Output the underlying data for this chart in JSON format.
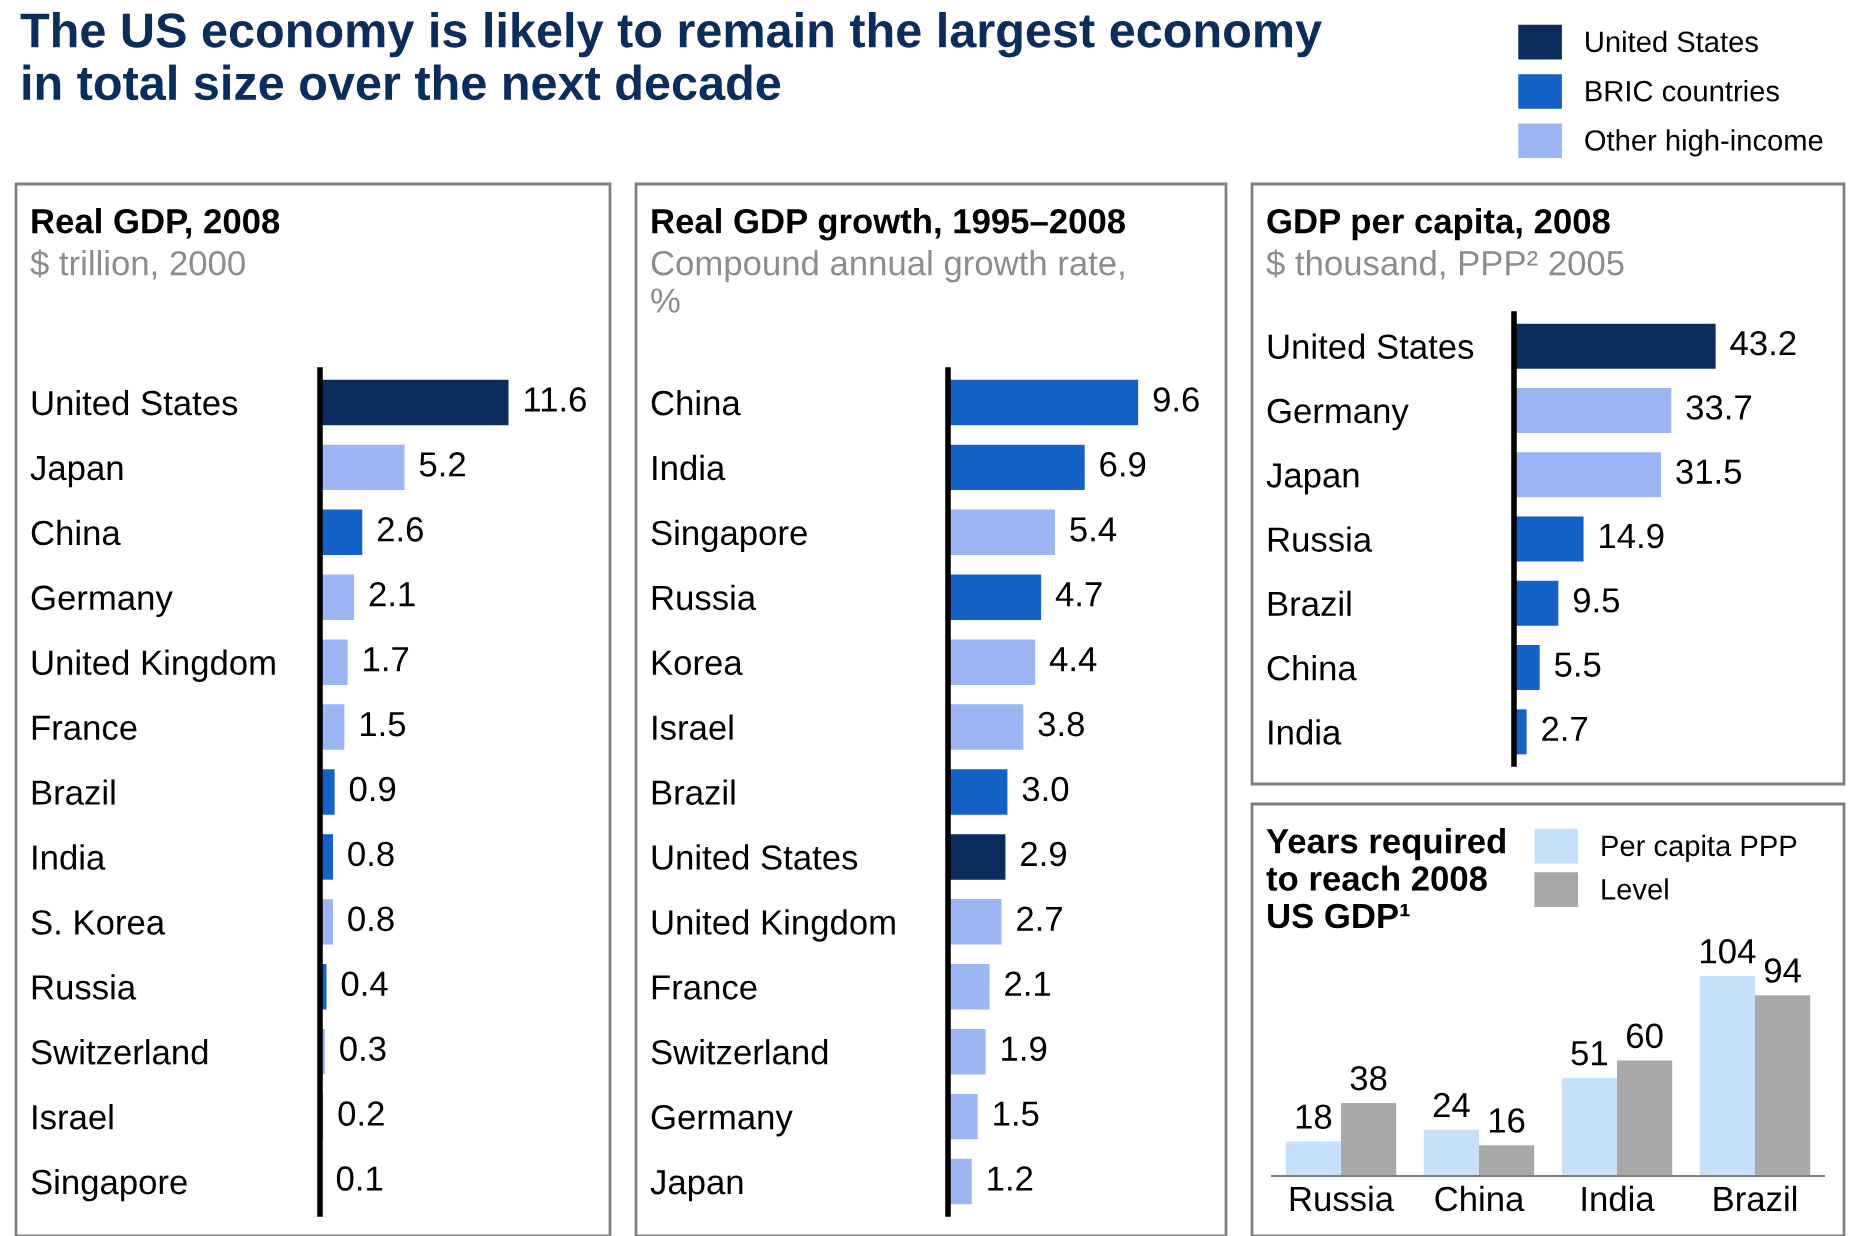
{
  "chart_data": [
    {
      "type": "other",
      "title": "The US economy is likely to remain the largest economy\nin total size over the next decade"
    },
    {
      "type": "bar",
      "orientation": "horizontal",
      "title": "Real GDP, 2008",
      "subtitle": "$ trillion, 2000",
      "categories": [
        "United States",
        "Japan",
        "China",
        "Germany",
        "United Kingdom",
        "France",
        "Brazil",
        "India",
        "S. Korea",
        "Russia",
        "Switzerland",
        "Israel",
        "Singapore"
      ],
      "series": [
        {
          "name": "United States",
          "color": "#0b2d5e",
          "values": [
            11.6,
            null,
            null,
            null,
            null,
            null,
            null,
            null,
            null,
            null,
            null,
            null,
            null
          ]
        },
        {
          "name": "BRIC countries",
          "color": "#1462c8",
          "values": [
            null,
            null,
            2.6,
            null,
            null,
            null,
            0.9,
            0.8,
            null,
            0.4,
            null,
            null,
            null
          ]
        },
        {
          "name": "Other high-income",
          "color": "#9bb5f5",
          "values": [
            null,
            5.2,
            null,
            2.1,
            1.7,
            1.5,
            null,
            null,
            0.8,
            null,
            0.3,
            0.2,
            0.1
          ]
        }
      ],
      "legend": "top right",
      "data_labels": true
    },
    {
      "type": "bar",
      "orientation": "horizontal",
      "title": "Real GDP growth, 1995–2008",
      "subtitle": "Compound annual growth rate,\n%",
      "categories": [
        "China",
        "India",
        "Singapore",
        "Russia",
        "Korea",
        "Israel",
        "Brazil",
        "United States",
        "United Kingdom",
        "France",
        "Switzerland",
        "Germany",
        "Japan"
      ],
      "values": [
        9.6,
        6.9,
        5.4,
        4.7,
        4.4,
        3.8,
        3.0,
        2.9,
        2.7,
        2.1,
        1.9,
        1.5,
        1.2
      ],
      "value_labels": [
        "9.6",
        "6.9",
        "5.4",
        "4.7",
        "4.4",
        "3.8",
        "3.0",
        "2.9",
        "2.7",
        "2.1",
        "1.9",
        "1.5",
        "1.2"
      ],
      "colors": [
        "#1462c8",
        "#1462c8",
        "#9bb5f5",
        "#1462c8",
        "#9bb5f5",
        "#9bb5f5",
        "#1462c8",
        "#0b2d5e",
        "#9bb5f5",
        "#9bb5f5",
        "#9bb5f5",
        "#9bb5f5",
        "#9bb5f5"
      ]
    },
    {
      "type": "bar",
      "orientation": "horizontal",
      "title": "GDP per capita, 2008",
      "subtitle": "$ thousand, PPP² 2005",
      "categories": [
        "United States",
        "Germany",
        "Japan",
        "Russia",
        "Brazil",
        "China",
        "India"
      ],
      "values": [
        43.2,
        33.7,
        31.5,
        14.9,
        9.5,
        5.5,
        2.7
      ],
      "colors": [
        "#0b2d5e",
        "#9bb5f5",
        "#9bb5f5",
        "#1462c8",
        "#1462c8",
        "#1462c8",
        "#1462c8"
      ],
      "data_labels": true
    },
    {
      "type": "bar",
      "title": "Years required\nto reach 2008\nUS GDP¹",
      "categories": [
        "Russia",
        "China",
        "India",
        "Brazil"
      ],
      "series": [
        {
          "name": "Per capita PPP",
          "color": "#c5e0f8",
          "values": [
            18,
            24,
            51,
            104
          ]
        },
        {
          "name": "Level",
          "color": "#a8a8a8",
          "values": [
            38,
            16,
            60,
            94
          ]
        }
      ],
      "legend": "top right",
      "data_labels": true
    }
  ]
}
